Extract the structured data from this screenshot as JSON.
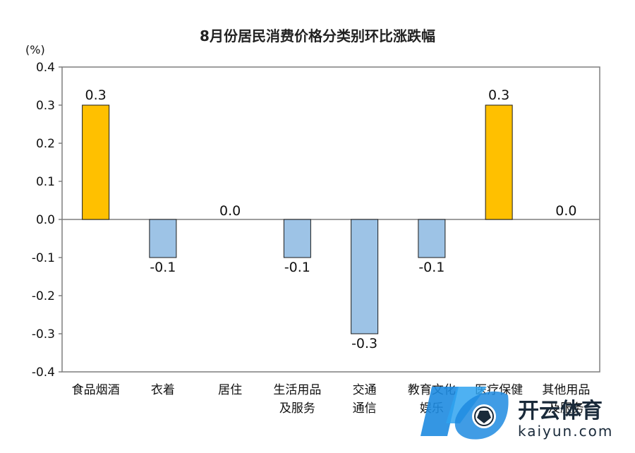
{
  "chart_data": {
    "type": "bar",
    "title": "8月份居民消费价格分类别环比涨跌幅",
    "y_unit": "(%)",
    "ylim": [
      -0.4,
      0.4
    ],
    "y_ticks": [
      "0.4",
      "0.3",
      "0.2",
      "0.1",
      "0.0",
      "-0.1",
      "-0.2",
      "-0.3",
      "-0.4"
    ],
    "categories": [
      [
        "食品烟酒"
      ],
      [
        "衣着"
      ],
      [
        "居住"
      ],
      [
        "生活用品",
        "及服务"
      ],
      [
        "交通",
        "通信"
      ],
      [
        "教育文化",
        "娱乐"
      ],
      [
        "医疗保健"
      ],
      [
        "其他用品",
        "及服务"
      ]
    ],
    "values": [
      0.3,
      -0.1,
      0.0,
      -0.1,
      -0.3,
      -0.1,
      0.3,
      0.0
    ],
    "value_labels": [
      "0.3",
      "-0.1",
      "0.0",
      "-0.1",
      "-0.3",
      "-0.1",
      "0.3",
      "0.0"
    ],
    "colors": {
      "positive": "#FFC000",
      "negative": "#9DC3E6",
      "bar_stroke": "#1a1a1a",
      "axis": "#7f7f7f"
    },
    "grid": false,
    "legend": "none"
  },
  "watermark": {
    "brand_text": "开云体育",
    "url_text": "kaiyun.com",
    "logo_icon": "kaiyun-logo-icon",
    "colors": {
      "blue": "#1E8BE0",
      "dark": "#1a2a3a"
    }
  }
}
